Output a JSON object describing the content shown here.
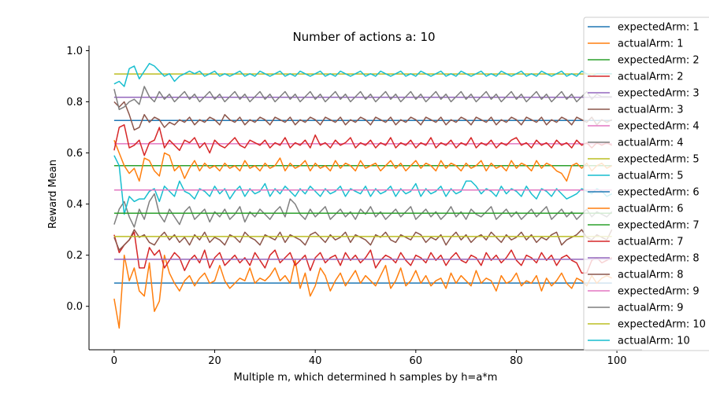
{
  "chart_data": {
    "type": "line",
    "title": "Number of actions a: 10",
    "xlabel": "Multiple m, which determined h samples by h=a*m",
    "ylabel": "Reward Mean",
    "xlim": [
      -5,
      105
    ],
    "ylim": [
      -0.17,
      1.02
    ],
    "x_ticks": [
      0,
      20,
      40,
      60,
      80,
      100
    ],
    "y_ticks": [
      0.0,
      0.2,
      0.4,
      0.6,
      0.8,
      1.0
    ],
    "x_tick_labels": [
      "0",
      "20",
      "40",
      "60",
      "80",
      "100"
    ],
    "y_tick_labels": [
      "0.0",
      "0.2",
      "0.4",
      "0.6",
      "0.8",
      "1.0"
    ],
    "x_range": [
      0,
      99
    ],
    "grid": false,
    "legend_position": "top-right",
    "colors": [
      "#1f77b4",
      "#ff7f0e",
      "#2ca02c",
      "#d62728",
      "#9467bd",
      "#8c564b",
      "#e377c2",
      "#7f7f7f",
      "#bcbd22",
      "#17becf"
    ],
    "expected_means": [
      0.091,
      0.55,
      0.184,
      0.636,
      0.273,
      0.727,
      0.364,
      0.818,
      0.455,
      0.909
    ],
    "series": [
      {
        "name": "expectedArm: 1",
        "kind": "expected",
        "arm": 1,
        "color": "#1f77b4"
      },
      {
        "name": "actualArm: 1",
        "kind": "actual",
        "arm": 1,
        "color": "#ff7f0e",
        "values": [
          0.03,
          -0.085,
          0.2,
          0.1,
          0.15,
          0.06,
          0.04,
          0.17,
          -0.02,
          0.02,
          0.2,
          0.13,
          0.09,
          0.06,
          0.1,
          0.12,
          0.08,
          0.11,
          0.13,
          0.09,
          0.1,
          0.16,
          0.1,
          0.07,
          0.09,
          0.11,
          0.1,
          0.15,
          0.09,
          0.11,
          0.1,
          0.12,
          0.15,
          0.1,
          0.12,
          0.09,
          0.18,
          0.07,
          0.13,
          0.04,
          0.08,
          0.15,
          0.12,
          0.06,
          0.1,
          0.13,
          0.08,
          0.11,
          0.14,
          0.09,
          0.12,
          0.1,
          0.08,
          0.12,
          0.16,
          0.07,
          0.1,
          0.15,
          0.08,
          0.1,
          0.14,
          0.09,
          0.12,
          0.08,
          0.1,
          0.11,
          0.07,
          0.13,
          0.09,
          0.12,
          0.1,
          0.08,
          0.14,
          0.09,
          0.11,
          0.1,
          0.06,
          0.12,
          0.09,
          0.1,
          0.13,
          0.08,
          0.1,
          0.09,
          0.12,
          0.06,
          0.11,
          0.08,
          0.1,
          0.13,
          0.09,
          0.07,
          0.11,
          0.1,
          0.08,
          0.12,
          0.09,
          0.11,
          0.12,
          0.11
        ]
      },
      {
        "name": "expectedArm: 2",
        "kind": "expected",
        "arm": 2,
        "color": "#2ca02c"
      },
      {
        "name": "actualArm: 2",
        "kind": "actual",
        "arm": 2,
        "color": "#d62728",
        "values": [
          0.28,
          0.21,
          0.24,
          0.26,
          0.29,
          0.15,
          0.15,
          0.23,
          0.2,
          0.22,
          0.15,
          0.18,
          0.21,
          0.19,
          0.14,
          0.18,
          0.2,
          0.17,
          0.22,
          0.15,
          0.19,
          0.21,
          0.16,
          0.18,
          0.2,
          0.17,
          0.19,
          0.16,
          0.21,
          0.18,
          0.15,
          0.2,
          0.22,
          0.17,
          0.19,
          0.21,
          0.16,
          0.18,
          0.2,
          0.14,
          0.19,
          0.21,
          0.17,
          0.19,
          0.2,
          0.16,
          0.21,
          0.18,
          0.2,
          0.17,
          0.19,
          0.22,
          0.15,
          0.18,
          0.2,
          0.19,
          0.17,
          0.21,
          0.18,
          0.16,
          0.2,
          0.19,
          0.17,
          0.21,
          0.18,
          0.2,
          0.16,
          0.19,
          0.21,
          0.18,
          0.17,
          0.2,
          0.19,
          0.16,
          0.21,
          0.18,
          0.2,
          0.17,
          0.19,
          0.22,
          0.18,
          0.16,
          0.2,
          0.19,
          0.17,
          0.21,
          0.18,
          0.2,
          0.16,
          0.19,
          0.2,
          0.18,
          0.17,
          0.13,
          0.13,
          0.18,
          0.19,
          0.17,
          0.18,
          0.19
        ]
      },
      {
        "name": "expectedArm: 3",
        "kind": "expected",
        "arm": 3,
        "color": "#9467bd"
      },
      {
        "name": "actualArm: 3",
        "kind": "actual",
        "arm": 3,
        "color": "#8c564b",
        "values": [
          0.27,
          0.22,
          0.24,
          0.26,
          0.3,
          0.27,
          0.28,
          0.25,
          0.24,
          0.27,
          0.29,
          0.26,
          0.28,
          0.25,
          0.27,
          0.24,
          0.28,
          0.26,
          0.29,
          0.25,
          0.27,
          0.26,
          0.24,
          0.28,
          0.27,
          0.25,
          0.29,
          0.27,
          0.26,
          0.24,
          0.28,
          0.27,
          0.26,
          0.29,
          0.25,
          0.28,
          0.27,
          0.26,
          0.24,
          0.28,
          0.29,
          0.27,
          0.25,
          0.28,
          0.26,
          0.27,
          0.29,
          0.25,
          0.28,
          0.27,
          0.26,
          0.24,
          0.28,
          0.27,
          0.29,
          0.26,
          0.25,
          0.28,
          0.27,
          0.26,
          0.29,
          0.28,
          0.25,
          0.27,
          0.26,
          0.28,
          0.24,
          0.27,
          0.29,
          0.26,
          0.28,
          0.25,
          0.27,
          0.28,
          0.26,
          0.29,
          0.27,
          0.25,
          0.28,
          0.26,
          0.27,
          0.29,
          0.26,
          0.28,
          0.25,
          0.27,
          0.26,
          0.28,
          0.29,
          0.24,
          0.26,
          0.27,
          0.28,
          0.3,
          0.27,
          0.26,
          0.28,
          0.27,
          0.26,
          0.3
        ]
      },
      {
        "name": "expectedArm: 4",
        "kind": "expected",
        "arm": 4,
        "color": "#e377c2"
      },
      {
        "name": "actualArm: 4",
        "kind": "actual",
        "arm": 4,
        "color": "#7f7f7f",
        "values": [
          0.32,
          0.38,
          0.41,
          0.35,
          0.31,
          0.38,
          0.34,
          0.41,
          0.44,
          0.36,
          0.33,
          0.38,
          0.35,
          0.32,
          0.37,
          0.39,
          0.34,
          0.36,
          0.38,
          0.33,
          0.37,
          0.35,
          0.38,
          0.34,
          0.36,
          0.39,
          0.33,
          0.37,
          0.35,
          0.38,
          0.36,
          0.34,
          0.37,
          0.39,
          0.35,
          0.42,
          0.4,
          0.36,
          0.34,
          0.38,
          0.35,
          0.37,
          0.39,
          0.34,
          0.36,
          0.38,
          0.35,
          0.37,
          0.34,
          0.38,
          0.36,
          0.39,
          0.35,
          0.37,
          0.34,
          0.36,
          0.38,
          0.35,
          0.37,
          0.39,
          0.34,
          0.36,
          0.38,
          0.35,
          0.37,
          0.34,
          0.36,
          0.39,
          0.35,
          0.37,
          0.34,
          0.38,
          0.36,
          0.35,
          0.37,
          0.39,
          0.34,
          0.36,
          0.38,
          0.35,
          0.37,
          0.34,
          0.36,
          0.38,
          0.35,
          0.37,
          0.39,
          0.34,
          0.36,
          0.38,
          0.35,
          0.37,
          0.34,
          0.36,
          0.38,
          0.35,
          0.37,
          0.36,
          0.35,
          0.37
        ]
      },
      {
        "name": "expectedArm: 5",
        "kind": "expected",
        "arm": 5,
        "color": "#bcbd22"
      },
      {
        "name": "actualArm: 5",
        "kind": "actual",
        "arm": 5,
        "color": "#17becf",
        "values": [
          0.59,
          0.55,
          0.36,
          0.43,
          0.41,
          0.42,
          0.42,
          0.45,
          0.46,
          0.41,
          0.47,
          0.45,
          0.43,
          0.49,
          0.45,
          0.44,
          0.42,
          0.46,
          0.45,
          0.43,
          0.47,
          0.44,
          0.46,
          0.42,
          0.45,
          0.47,
          0.43,
          0.46,
          0.44,
          0.45,
          0.48,
          0.43,
          0.46,
          0.44,
          0.47,
          0.45,
          0.43,
          0.46,
          0.44,
          0.47,
          0.45,
          0.43,
          0.46,
          0.44,
          0.45,
          0.47,
          0.43,
          0.46,
          0.45,
          0.44,
          0.47,
          0.43,
          0.46,
          0.44,
          0.45,
          0.47,
          0.43,
          0.46,
          0.44,
          0.45,
          0.48,
          0.43,
          0.46,
          0.44,
          0.45,
          0.47,
          0.43,
          0.46,
          0.44,
          0.45,
          0.49,
          0.49,
          0.47,
          0.44,
          0.46,
          0.45,
          0.43,
          0.47,
          0.44,
          0.46,
          0.45,
          0.43,
          0.47,
          0.44,
          0.42,
          0.46,
          0.45,
          0.43,
          0.46,
          0.44,
          0.42,
          0.43,
          0.44,
          0.46,
          0.45,
          0.44,
          0.46,
          0.45,
          0.43,
          0.44
        ]
      },
      {
        "name": "expectedArm: 6",
        "kind": "expected",
        "arm": 6,
        "color": "#1f77b4"
      },
      {
        "name": "actualArm: 6",
        "kind": "actual",
        "arm": 6,
        "color": "#ff7f0e",
        "values": [
          0.65,
          0.6,
          0.55,
          0.52,
          0.54,
          0.49,
          0.58,
          0.57,
          0.53,
          0.51,
          0.6,
          0.59,
          0.53,
          0.55,
          0.5,
          0.54,
          0.57,
          0.53,
          0.56,
          0.54,
          0.55,
          0.53,
          0.56,
          0.54,
          0.55,
          0.53,
          0.57,
          0.54,
          0.55,
          0.53,
          0.56,
          0.54,
          0.55,
          0.58,
          0.53,
          0.56,
          0.54,
          0.55,
          0.57,
          0.53,
          0.56,
          0.54,
          0.55,
          0.53,
          0.57,
          0.54,
          0.56,
          0.55,
          0.53,
          0.57,
          0.54,
          0.55,
          0.56,
          0.53,
          0.55,
          0.57,
          0.54,
          0.56,
          0.53,
          0.55,
          0.57,
          0.54,
          0.56,
          0.55,
          0.53,
          0.57,
          0.54,
          0.56,
          0.55,
          0.53,
          0.56,
          0.54,
          0.55,
          0.57,
          0.53,
          0.56,
          0.54,
          0.55,
          0.53,
          0.57,
          0.54,
          0.56,
          0.55,
          0.53,
          0.57,
          0.54,
          0.56,
          0.55,
          0.53,
          0.52,
          0.49,
          0.55,
          0.56,
          0.54,
          0.56,
          0.53,
          0.55,
          0.56,
          0.54,
          0.55
        ]
      },
      {
        "name": "expectedArm: 7",
        "kind": "expected",
        "arm": 7,
        "color": "#2ca02c"
      },
      {
        "name": "actualArm: 7",
        "kind": "actual",
        "arm": 7,
        "color": "#d62728",
        "values": [
          0.61,
          0.7,
          0.71,
          0.62,
          0.63,
          0.65,
          0.59,
          0.64,
          0.65,
          0.7,
          0.62,
          0.65,
          0.63,
          0.61,
          0.65,
          0.64,
          0.66,
          0.62,
          0.64,
          0.6,
          0.65,
          0.63,
          0.62,
          0.64,
          0.66,
          0.63,
          0.62,
          0.65,
          0.64,
          0.63,
          0.65,
          0.62,
          0.64,
          0.63,
          0.66,
          0.62,
          0.64,
          0.63,
          0.65,
          0.62,
          0.67,
          0.63,
          0.64,
          0.62,
          0.65,
          0.63,
          0.64,
          0.66,
          0.62,
          0.64,
          0.63,
          0.65,
          0.62,
          0.64,
          0.63,
          0.66,
          0.62,
          0.64,
          0.63,
          0.65,
          0.62,
          0.64,
          0.63,
          0.66,
          0.62,
          0.64,
          0.63,
          0.65,
          0.62,
          0.64,
          0.63,
          0.66,
          0.62,
          0.64,
          0.63,
          0.65,
          0.62,
          0.64,
          0.63,
          0.65,
          0.66,
          0.63,
          0.64,
          0.62,
          0.65,
          0.63,
          0.64,
          0.62,
          0.65,
          0.63,
          0.64,
          0.62,
          0.65,
          0.63,
          0.64,
          0.62,
          0.64,
          0.63,
          0.64,
          0.63
        ]
      },
      {
        "name": "expectedArm: 8",
        "kind": "expected",
        "arm": 8,
        "color": "#9467bd"
      },
      {
        "name": "actualArm: 8",
        "kind": "actual",
        "arm": 8,
        "color": "#8c564b",
        "values": [
          0.8,
          0.78,
          0.8,
          0.75,
          0.69,
          0.7,
          0.75,
          0.72,
          0.74,
          0.73,
          0.7,
          0.72,
          0.71,
          0.73,
          0.72,
          0.74,
          0.71,
          0.73,
          0.72,
          0.74,
          0.73,
          0.71,
          0.75,
          0.73,
          0.72,
          0.74,
          0.71,
          0.73,
          0.72,
          0.74,
          0.73,
          0.71,
          0.74,
          0.73,
          0.72,
          0.74,
          0.71,
          0.73,
          0.72,
          0.74,
          0.73,
          0.71,
          0.74,
          0.73,
          0.72,
          0.74,
          0.71,
          0.73,
          0.72,
          0.74,
          0.73,
          0.71,
          0.74,
          0.73,
          0.72,
          0.74,
          0.71,
          0.73,
          0.72,
          0.74,
          0.73,
          0.71,
          0.74,
          0.73,
          0.72,
          0.74,
          0.71,
          0.73,
          0.72,
          0.74,
          0.73,
          0.71,
          0.74,
          0.73,
          0.72,
          0.74,
          0.71,
          0.73,
          0.72,
          0.74,
          0.73,
          0.71,
          0.74,
          0.73,
          0.72,
          0.74,
          0.71,
          0.73,
          0.72,
          0.74,
          0.73,
          0.71,
          0.74,
          0.73,
          0.72,
          0.74,
          0.71,
          0.73,
          0.72,
          0.73
        ]
      },
      {
        "name": "expectedArm: 9",
        "kind": "expected",
        "arm": 9,
        "color": "#e377c2"
      },
      {
        "name": "actualArm: 9",
        "kind": "actual",
        "arm": 9,
        "color": "#7f7f7f",
        "values": [
          0.85,
          0.77,
          0.78,
          0.8,
          0.81,
          0.79,
          0.86,
          0.82,
          0.8,
          0.84,
          0.81,
          0.83,
          0.8,
          0.82,
          0.84,
          0.81,
          0.83,
          0.8,
          0.82,
          0.84,
          0.81,
          0.83,
          0.8,
          0.82,
          0.84,
          0.81,
          0.83,
          0.8,
          0.82,
          0.84,
          0.81,
          0.83,
          0.8,
          0.82,
          0.84,
          0.81,
          0.83,
          0.8,
          0.82,
          0.84,
          0.81,
          0.83,
          0.8,
          0.82,
          0.84,
          0.81,
          0.83,
          0.8,
          0.82,
          0.84,
          0.81,
          0.83,
          0.8,
          0.82,
          0.84,
          0.81,
          0.83,
          0.8,
          0.82,
          0.84,
          0.81,
          0.83,
          0.8,
          0.82,
          0.84,
          0.81,
          0.83,
          0.8,
          0.82,
          0.84,
          0.81,
          0.83,
          0.8,
          0.82,
          0.84,
          0.81,
          0.83,
          0.8,
          0.82,
          0.84,
          0.81,
          0.83,
          0.8,
          0.82,
          0.84,
          0.81,
          0.83,
          0.8,
          0.82,
          0.84,
          0.81,
          0.83,
          0.8,
          0.82,
          0.84,
          0.81,
          0.83,
          0.82,
          0.82,
          0.82
        ]
      },
      {
        "name": "expectedArm: 10",
        "kind": "expected",
        "arm": 10,
        "color": "#bcbd22"
      },
      {
        "name": "actualArm: 10",
        "kind": "actual",
        "arm": 10,
        "color": "#17becf",
        "values": [
          0.87,
          0.88,
          0.86,
          0.93,
          0.94,
          0.89,
          0.92,
          0.95,
          0.94,
          0.92,
          0.9,
          0.91,
          0.88,
          0.9,
          0.91,
          0.92,
          0.91,
          0.92,
          0.9,
          0.91,
          0.92,
          0.9,
          0.91,
          0.9,
          0.91,
          0.92,
          0.9,
          0.91,
          0.9,
          0.92,
          0.91,
          0.9,
          0.91,
          0.92,
          0.9,
          0.91,
          0.9,
          0.92,
          0.91,
          0.9,
          0.91,
          0.92,
          0.9,
          0.91,
          0.9,
          0.92,
          0.91,
          0.9,
          0.91,
          0.92,
          0.9,
          0.91,
          0.9,
          0.92,
          0.91,
          0.9,
          0.91,
          0.92,
          0.9,
          0.91,
          0.9,
          0.92,
          0.91,
          0.9,
          0.91,
          0.92,
          0.9,
          0.91,
          0.9,
          0.92,
          0.91,
          0.9,
          0.91,
          0.92,
          0.9,
          0.91,
          0.9,
          0.92,
          0.91,
          0.9,
          0.91,
          0.92,
          0.9,
          0.91,
          0.9,
          0.92,
          0.91,
          0.9,
          0.91,
          0.92,
          0.9,
          0.91,
          0.9,
          0.92,
          0.91,
          0.9,
          0.91,
          0.91,
          0.91,
          0.91
        ]
      }
    ]
  }
}
